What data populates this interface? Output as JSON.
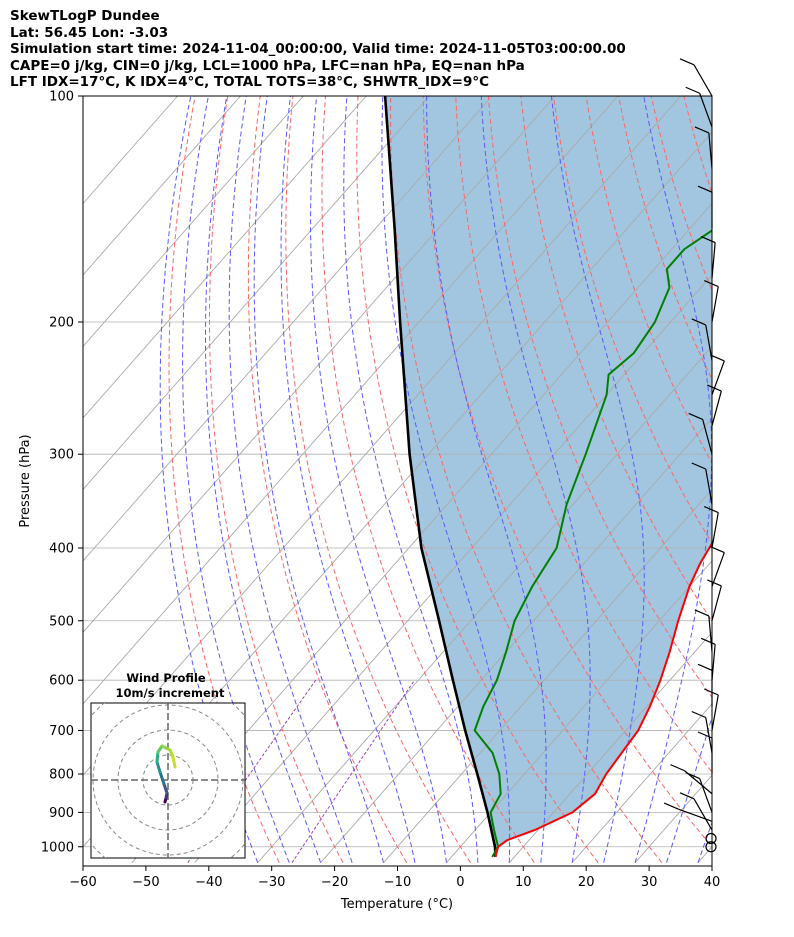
{
  "header": {
    "line1": "SkewTLogP Dundee",
    "line2": "Lat: 56.45   Lon: -3.03",
    "line3": "Simulation start time: 2024-11-04_00:00:00, Valid time: 2024-11-05T03:00:00.00",
    "line4": "CAPE=0 j/kg, CIN=0 j/kg, LCL=1000 hPa, LFC=nan hPa, EQ=nan hPa",
    "line5": "LFT IDX=17°C, K IDX=4°C, TOTAL TOTS=38°C, SHWTR_IDX=9°C"
  },
  "chart_data": {
    "type": "skew-t log-p",
    "xlabel": "Temperature (°C)",
    "ylabel": "Pressure (hPa)",
    "xlim": [
      -60,
      40
    ],
    "ylim": [
      1050,
      100
    ],
    "x_ticks": [
      "−60",
      "−50",
      "−40",
      "−30",
      "−20",
      "−10",
      "0",
      "10",
      "20",
      "30",
      "40"
    ],
    "y_ticks": [
      "100",
      "200",
      "300",
      "400",
      "500",
      "600",
      "700",
      "800",
      "900",
      "1000"
    ],
    "grid": true,
    "shaded_area_color": "#a2c6df",
    "colors": {
      "temperature": "#ff0000",
      "dewpoint": "#008000",
      "parcel": "#000000",
      "dry_adiabats": "#ff6666",
      "moist_adiabats": "#5a5aff",
      "isotherms": "#aaaaaa",
      "mixing_ratio": "#a040c0"
    },
    "temperature": [
      [
        1032,
        7.0
      ],
      [
        1000,
        6.0
      ],
      [
        980,
        6.5
      ],
      [
        950,
        9.5
      ],
      [
        900,
        13.0
      ],
      [
        850,
        14.0
      ],
      [
        800,
        13.0
      ],
      [
        750,
        12.5
      ],
      [
        700,
        12.0
      ],
      [
        650,
        10.5
      ],
      [
        600,
        8.5
      ],
      [
        550,
        6.0
      ],
      [
        500,
        3.0
      ],
      [
        450,
        0.0
      ],
      [
        420,
        -1.5
      ],
      [
        380,
        -3.0
      ],
      [
        350,
        -6.0
      ],
      [
        300,
        -11.0
      ],
      [
        250,
        -17.0
      ],
      [
        230,
        -19.5
      ],
      [
        220,
        -19.0
      ],
      [
        205,
        -18.0
      ],
      [
        180,
        -17.0
      ],
      [
        160,
        -15.0
      ],
      [
        150,
        -13.0
      ],
      [
        140,
        -11.0
      ],
      [
        130,
        -8.5
      ],
      [
        120,
        -6.0
      ],
      [
        110,
        -4.0
      ],
      [
        100,
        -2.0
      ]
    ],
    "dewpoint": [
      [
        1032,
        6.5
      ],
      [
        1000,
        6.0
      ],
      [
        950,
        3.0
      ],
      [
        900,
        0.0
      ],
      [
        850,
        -1.0
      ],
      [
        800,
        -4.0
      ],
      [
        750,
        -8.0
      ],
      [
        700,
        -14.0
      ],
      [
        650,
        -16.0
      ],
      [
        600,
        -17.5
      ],
      [
        550,
        -20.0
      ],
      [
        500,
        -23.0
      ],
      [
        450,
        -25.0
      ],
      [
        400,
        -26.5
      ],
      [
        350,
        -31.0
      ],
      [
        300,
        -35.0
      ],
      [
        250,
        -40.0
      ],
      [
        235,
        -42.5
      ],
      [
        220,
        -41.5
      ],
      [
        200,
        -42.5
      ],
      [
        180,
        -45.0
      ],
      [
        170,
        -48.0
      ],
      [
        160,
        -48.0
      ],
      [
        150,
        -46.0
      ],
      [
        130,
        -44.0
      ],
      [
        115,
        -42.0
      ],
      [
        100,
        -40.0
      ]
    ],
    "parcel": [
      [
        1032,
        7.0
      ],
      [
        1000,
        5.5
      ],
      [
        900,
        -0.5
      ],
      [
        800,
        -7.5
      ],
      [
        700,
        -15.5
      ],
      [
        600,
        -24.5
      ],
      [
        500,
        -35.0
      ],
      [
        400,
        -48.0
      ],
      [
        300,
        -63.0
      ],
      [
        200,
        -83.0
      ],
      [
        150,
        -97.0
      ],
      [
        100,
        -117.0
      ]
    ],
    "wind_profile": {
      "title": "Wind Profile",
      "subtitle": "10m/s increment"
    }
  }
}
